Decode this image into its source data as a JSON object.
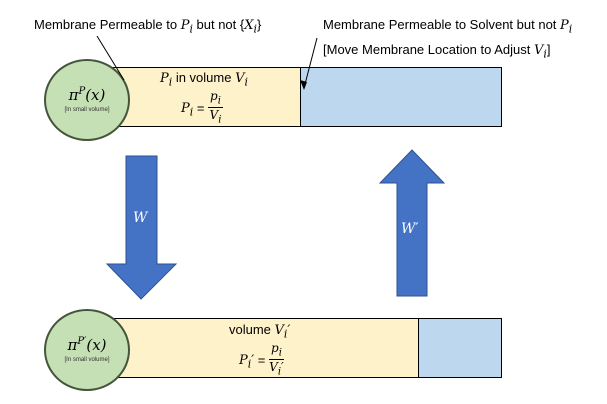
{
  "annotations": {
    "left_prefix": "Membrane Permeable to ",
    "left_p": "P",
    "left_p_sub": "i",
    "left_mid": " but not {",
    "left_x": "X",
    "left_x_sub": "i",
    "left_suffix": "}",
    "right_line1_prefix": "Membrane Permeable to Solvent but not ",
    "right_line1_p": "P",
    "right_line1_sub": "i",
    "right_line2_prefix": "[Move Membrane Location to Adjust ",
    "right_line2_v": "V",
    "right_line2_sub": "i",
    "right_line2_suffix": "]"
  },
  "top": {
    "circle_pi": "π",
    "circle_sup": "P",
    "circle_arg": "(x)",
    "circle_note": "[In small volume]",
    "label_p": "P",
    "label_p_sub": "i",
    "label_in_volume": " in volume ",
    "label_v": "V",
    "label_v_sub": "i",
    "eq_lhs": "P",
    "eq_lhs_sub": "i",
    "eq_sign": " = ",
    "num": "p",
    "num_sub": "i",
    "den": "V",
    "den_sub": "i"
  },
  "arrows": {
    "down_label": "W",
    "up_label": "W′"
  },
  "bottom": {
    "circle_pi": "π",
    "circle_sup": "P′",
    "circle_arg": "(x)",
    "circle_note": "[In small volume]",
    "label_volume": "volume ",
    "label_v": "V",
    "label_v_sub": "i",
    "label_prime": "′",
    "eq_lhs": "P",
    "eq_lhs_sub": "i",
    "eq_prime": "′",
    "eq_sign": " = ",
    "num": "p",
    "num_sub": "i",
    "den": "V",
    "den_sub": "i",
    "den_prime": "′"
  },
  "colors": {
    "circle_fill": "#c5e0b4",
    "circle_stroke": "#45553b",
    "yellow_fill": "#fef2cb",
    "blue_fill": "#bdd7ee",
    "arrow_fill": "#4472c4"
  }
}
